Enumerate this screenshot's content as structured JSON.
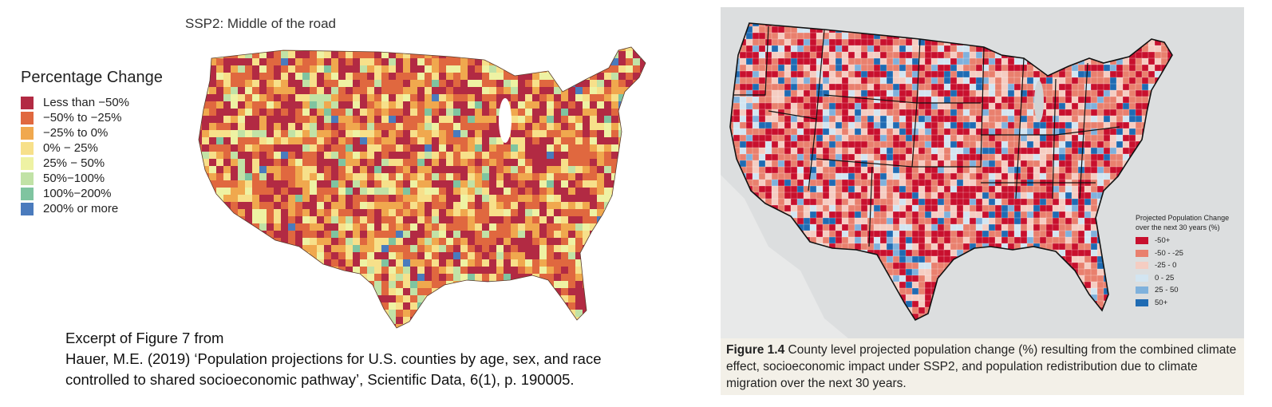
{
  "left_figure": {
    "title": "SSP2: Middle of the road",
    "legend_title": "Percentage Change",
    "legend": [
      {
        "label": "Less than −50%",
        "color": "#b22a43"
      },
      {
        "label": "−50% to −25%",
        "color": "#e0683f"
      },
      {
        "label": "−25% to 0%",
        "color": "#f0a84e"
      },
      {
        "label": "0% − 25%",
        "color": "#f7e08a"
      },
      {
        "label": "25% − 50%",
        "color": "#eef2a3"
      },
      {
        "label": "50%−100%",
        "color": "#c1e2a6"
      },
      {
        "label": "100%−200%",
        "color": "#7fc4a0"
      },
      {
        "label": "200% or more",
        "color": "#4a7bbd"
      }
    ],
    "citation_lines": [
      "Excerpt of Figure 7 from",
      "Hauer, M.E. (2019) ‘Population projections for U.S. counties by age, sex, and race",
      "controlled to shared socioeconomic pathway’, Scientific Data, 6(1), p. 190005."
    ]
  },
  "right_figure": {
    "legend_title_line1": "Projected Population Change",
    "legend_title_line2": "over the next 30 years (%)",
    "legend": [
      {
        "label": "-50+",
        "color": "#c8102e"
      },
      {
        "label": "-50 - -25",
        "color": "#e9806e"
      },
      {
        "label": "-25 - 0",
        "color": "#f5cdc2"
      },
      {
        "label": "0 - 25",
        "color": "#d3e5f1"
      },
      {
        "label": "25 - 50",
        "color": "#7fb1dc"
      },
      {
        "label": "50+",
        "color": "#1f6bb3"
      }
    ],
    "caption_label": "Figure 1.4",
    "caption_text": " County level projected population change (%) resulting from the combined climate effect, socioeconomic impact under SSP2, and population redistribution due to climate migration over the next 30 years."
  }
}
